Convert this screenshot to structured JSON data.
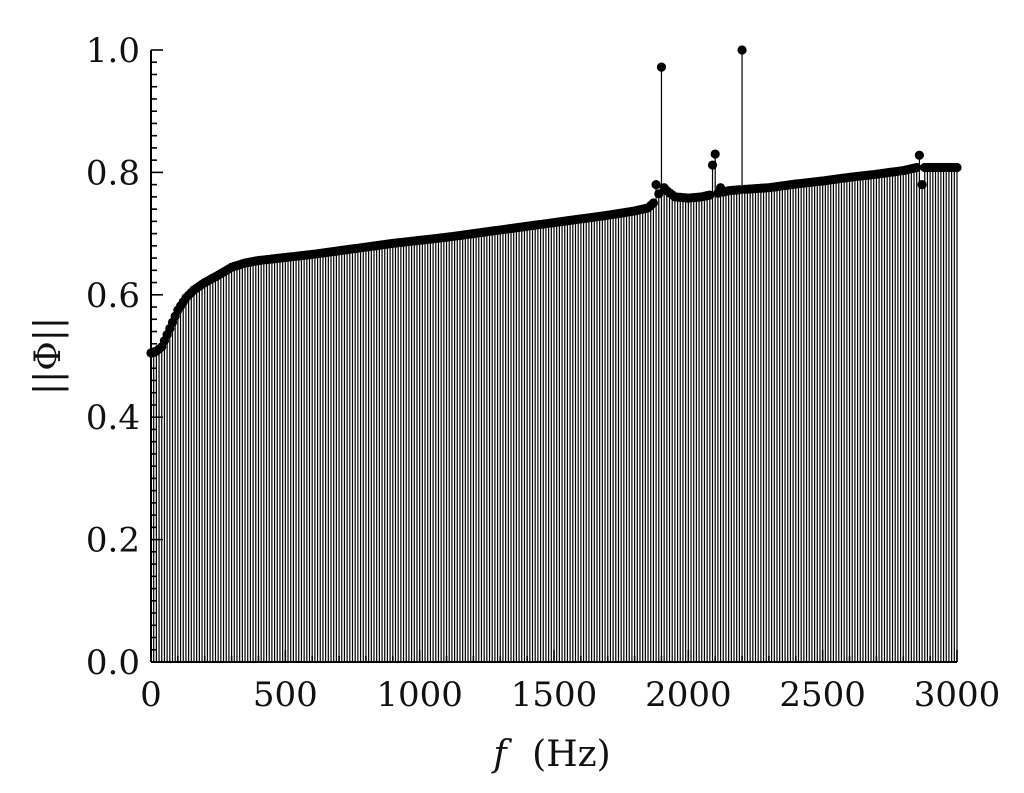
{
  "chart_data": {
    "type": "stem",
    "title": "",
    "xlabel_var": "f",
    "xlabel_unit": "(Hz)",
    "ylabel": "||Φ||",
    "xlim": [
      0,
      3000
    ],
    "ylim": [
      0.0,
      1.0
    ],
    "x_ticks": [
      "0",
      "500",
      "1000",
      "1500",
      "2000",
      "2500",
      "3000"
    ],
    "y_ticks": [
      "0.0",
      "0.2",
      "0.4",
      "0.6",
      "0.8",
      "1.0"
    ],
    "grid": false,
    "legend": "none",
    "step_hz": 10,
    "curve_key_points": [
      [
        0,
        0.505
      ],
      [
        20,
        0.508
      ],
      [
        40,
        0.515
      ],
      [
        60,
        0.535
      ],
      [
        80,
        0.555
      ],
      [
        100,
        0.575
      ],
      [
        130,
        0.595
      ],
      [
        160,
        0.608
      ],
      [
        200,
        0.62
      ],
      [
        250,
        0.632
      ],
      [
        300,
        0.645
      ],
      [
        350,
        0.652
      ],
      [
        400,
        0.656
      ],
      [
        500,
        0.661
      ],
      [
        600,
        0.666
      ],
      [
        700,
        0.672
      ],
      [
        800,
        0.678
      ],
      [
        900,
        0.684
      ],
      [
        1000,
        0.689
      ],
      [
        1100,
        0.694
      ],
      [
        1200,
        0.7
      ],
      [
        1300,
        0.706
      ],
      [
        1400,
        0.712
      ],
      [
        1500,
        0.718
      ],
      [
        1600,
        0.724
      ],
      [
        1700,
        0.73
      ],
      [
        1800,
        0.737
      ],
      [
        1850,
        0.742
      ],
      [
        1870,
        0.75
      ],
      [
        1890,
        0.765
      ],
      [
        1920,
        0.77
      ],
      [
        1950,
        0.76
      ],
      [
        2000,
        0.758
      ],
      [
        2050,
        0.76
      ],
      [
        2100,
        0.765
      ],
      [
        2150,
        0.77
      ],
      [
        2200,
        0.772
      ],
      [
        2300,
        0.775
      ],
      [
        2400,
        0.781
      ],
      [
        2500,
        0.786
      ],
      [
        2600,
        0.792
      ],
      [
        2700,
        0.797
      ],
      [
        2800,
        0.803
      ],
      [
        2850,
        0.808
      ],
      [
        2900,
        0.808
      ],
      [
        3000,
        0.808
      ]
    ],
    "point_overrides": [
      [
        1880,
        0.78
      ],
      [
        1900,
        0.972
      ],
      [
        1910,
        0.775
      ],
      [
        2090,
        0.812
      ],
      [
        2100,
        0.83
      ],
      [
        2120,
        0.775
      ],
      [
        2200,
        1.0
      ],
      [
        2860,
        0.828
      ],
      [
        2870,
        0.78
      ]
    ]
  }
}
